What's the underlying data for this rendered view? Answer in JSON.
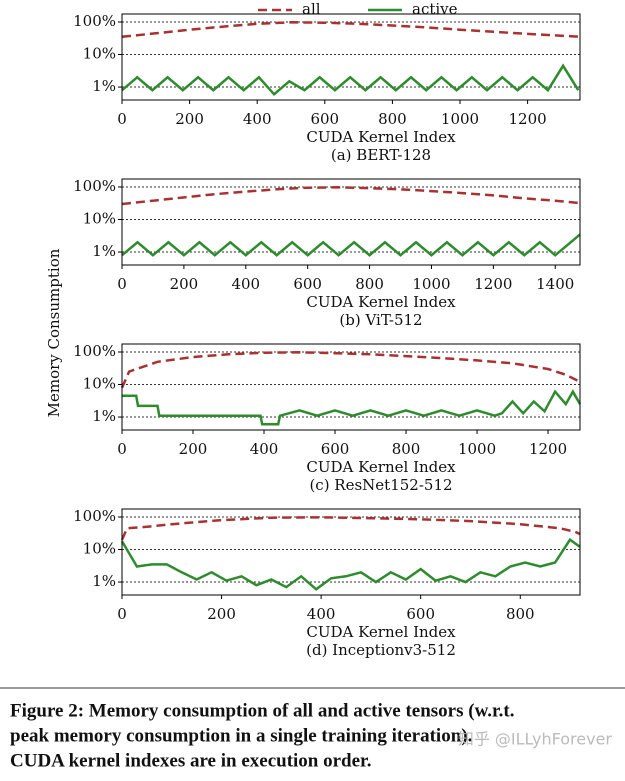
{
  "ylabel": "Memory Consumption",
  "caption": [
    "Figure 2: Memory consumption of all and active tensors (w.r.t.",
    "peak memory consumption in a single training iteration).",
    "CUDA kernel indexes are in execution order."
  ],
  "watermark": "知乎 @ILLyhForever",
  "chart_data": [
    {
      "type": "line",
      "title": "(a) BERT-128",
      "xlabel": "CUDA Kernel Index",
      "log_y": true,
      "grid": true,
      "legend": "top",
      "xlim": [
        0,
        1355
      ],
      "xticks": [
        0,
        200,
        400,
        600,
        800,
        1000,
        1200
      ],
      "ylim": [
        0.4,
        176
      ],
      "yticks": [
        {
          "value": 1,
          "label": "1%"
        },
        {
          "value": 10,
          "label": "10%"
        },
        {
          "value": 100,
          "label": "100%"
        }
      ],
      "series": [
        {
          "name": "all",
          "color": "#a83232",
          "style": "dashed",
          "x": [
            0,
            100,
            200,
            300,
            400,
            500,
            600,
            700,
            800,
            900,
            1000,
            1100,
            1200,
            1300,
            1355
          ],
          "values": [
            35,
            45,
            58,
            72,
            88,
            98,
            95,
            88,
            78,
            68,
            58,
            50,
            43,
            38,
            35
          ]
        },
        {
          "name": "active",
          "color": "#2e8b2e",
          "style": "solid",
          "x": [
            0,
            45,
            90,
            135,
            180,
            225,
            270,
            315,
            360,
            405,
            450,
            495,
            540,
            585,
            630,
            675,
            720,
            765,
            810,
            855,
            900,
            945,
            990,
            1035,
            1080,
            1125,
            1170,
            1215,
            1260,
            1305,
            1350
          ],
          "values": [
            0.8,
            2,
            0.8,
            2,
            0.8,
            2,
            0.8,
            2,
            0.8,
            2,
            0.6,
            1.5,
            0.8,
            2,
            0.8,
            2,
            0.8,
            2,
            0.8,
            2,
            0.8,
            2,
            0.8,
            2,
            0.8,
            2,
            0.8,
            2,
            0.8,
            4.5,
            0.8
          ]
        }
      ]
    },
    {
      "type": "line",
      "title": "(b) ViT-512",
      "xlabel": "CUDA Kernel Index",
      "log_y": true,
      "grid": true,
      "xlim": [
        0,
        1480
      ],
      "xticks": [
        0,
        200,
        400,
        600,
        800,
        1000,
        1200,
        1400
      ],
      "ylim": [
        0.4,
        176
      ],
      "yticks": [
        {
          "value": 1,
          "label": "1%"
        },
        {
          "value": 10,
          "label": "10%"
        },
        {
          "value": 100,
          "label": "100%"
        }
      ],
      "series": [
        {
          "name": "all",
          "color": "#a83232",
          "style": "dashed",
          "x": [
            0,
            100,
            200,
            300,
            400,
            500,
            600,
            700,
            800,
            900,
            1000,
            1100,
            1200,
            1300,
            1400,
            1480
          ],
          "values": [
            30,
            38,
            48,
            60,
            72,
            85,
            95,
            98,
            92,
            85,
            75,
            65,
            55,
            45,
            38,
            32
          ]
        },
        {
          "name": "active",
          "color": "#2e8b2e",
          "style": "solid",
          "x": [
            0,
            50,
            100,
            150,
            200,
            250,
            300,
            350,
            400,
            450,
            500,
            550,
            600,
            650,
            700,
            750,
            800,
            850,
            900,
            950,
            1000,
            1050,
            1100,
            1150,
            1200,
            1250,
            1300,
            1350,
            1400,
            1450,
            1480
          ],
          "values": [
            0.8,
            2,
            0.8,
            2,
            0.8,
            2,
            0.8,
            2,
            0.8,
            2,
            0.8,
            2,
            0.8,
            2,
            0.8,
            2,
            0.8,
            2,
            0.8,
            2,
            0.8,
            2,
            0.8,
            2,
            0.8,
            2,
            0.8,
            2,
            0.8,
            2,
            3.5
          ]
        }
      ]
    },
    {
      "type": "line",
      "title": "(c) ResNet152-512",
      "xlabel": "CUDA Kernel Index",
      "log_y": true,
      "grid": true,
      "xlim": [
        0,
        1290
      ],
      "xticks": [
        0,
        200,
        400,
        600,
        800,
        1000,
        1200
      ],
      "ylim": [
        0.4,
        176
      ],
      "yticks": [
        {
          "value": 1,
          "label": "1%"
        },
        {
          "value": 10,
          "label": "10%"
        },
        {
          "value": 100,
          "label": "100%"
        }
      ],
      "series": [
        {
          "name": "all",
          "color": "#a83232",
          "style": "dashed",
          "x": [
            0,
            20,
            100,
            200,
            300,
            400,
            500,
            600,
            700,
            800,
            900,
            1000,
            1100,
            1200,
            1250,
            1290
          ],
          "values": [
            8,
            25,
            50,
            70,
            85,
            95,
            98,
            92,
            85,
            75,
            65,
            55,
            45,
            30,
            20,
            12
          ]
        },
        {
          "name": "active",
          "color": "#2e8b2e",
          "style": "solid",
          "x": [
            0,
            40,
            45,
            100,
            105,
            390,
            395,
            440,
            445,
            500,
            550,
            600,
            650,
            700,
            750,
            800,
            850,
            900,
            950,
            1000,
            1050,
            1070,
            1100,
            1130,
            1160,
            1190,
            1220,
            1250,
            1270,
            1290
          ],
          "values": [
            4.5,
            4.5,
            2.2,
            2.2,
            1.1,
            1.1,
            0.6,
            0.6,
            1.1,
            1.6,
            1.1,
            1.6,
            1.1,
            1.6,
            1.1,
            1.6,
            1.1,
            1.6,
            1.1,
            1.6,
            1.1,
            1.3,
            3,
            1.3,
            3,
            1.5,
            6,
            2.5,
            6,
            2.5
          ]
        }
      ]
    },
    {
      "type": "line",
      "title": "(d) Inceptionv3-512",
      "xlabel": "CUDA Kernel Index",
      "log_y": true,
      "grid": true,
      "xlim": [
        0,
        920
      ],
      "xticks": [
        0,
        200,
        400,
        600,
        800
      ],
      "ylim": [
        0.4,
        176
      ],
      "yticks": [
        {
          "value": 1,
          "label": "1%"
        },
        {
          "value": 10,
          "label": "10%"
        },
        {
          "value": 100,
          "label": "100%"
        }
      ],
      "series": [
        {
          "name": "all",
          "color": "#a83232",
          "style": "dashed",
          "x": [
            0,
            10,
            50,
            100,
            200,
            300,
            400,
            500,
            600,
            700,
            800,
            880,
            910,
            920
          ],
          "values": [
            20,
            45,
            50,
            60,
            80,
            95,
            98,
            92,
            85,
            75,
            60,
            45,
            35,
            30
          ]
        },
        {
          "name": "active",
          "color": "#2e8b2e",
          "style": "solid",
          "x": [
            0,
            30,
            60,
            90,
            120,
            150,
            180,
            210,
            240,
            270,
            300,
            330,
            360,
            390,
            420,
            450,
            480,
            510,
            540,
            570,
            600,
            630,
            660,
            690,
            720,
            750,
            780,
            810,
            840,
            870,
            900,
            920
          ],
          "values": [
            18,
            3,
            3.5,
            3.5,
            2,
            1.2,
            2,
            1.1,
            1.5,
            0.8,
            1.2,
            0.7,
            1.5,
            0.6,
            1.3,
            1.5,
            2,
            1,
            2,
            1.2,
            2.5,
            1.1,
            1.5,
            1,
            2,
            1.5,
            3,
            4,
            3,
            4,
            20,
            12
          ]
        }
      ]
    }
  ]
}
